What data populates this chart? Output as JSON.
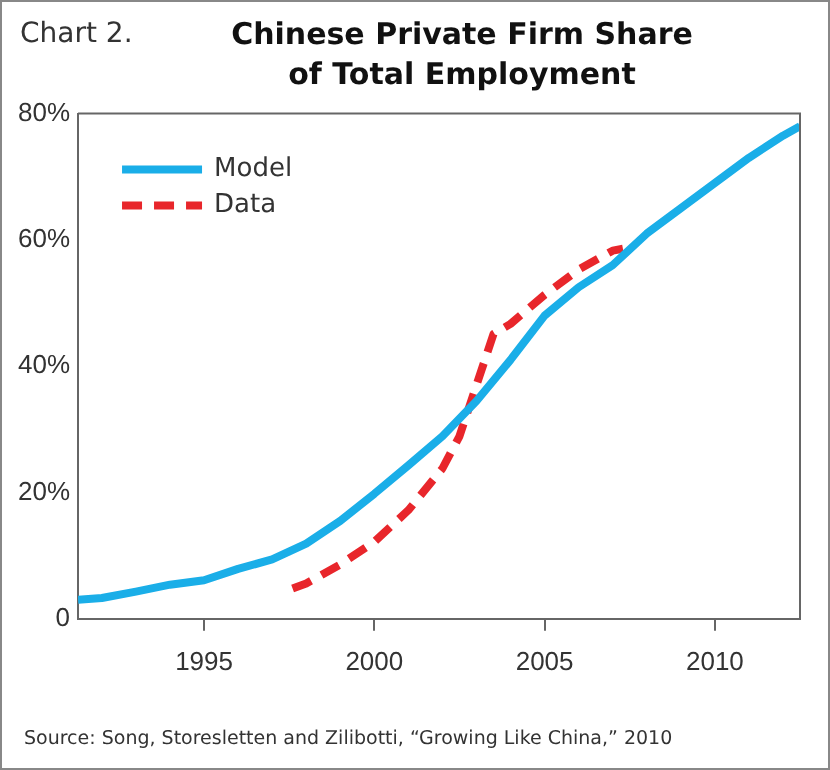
{
  "chart_data": {
    "type": "line",
    "title": "Chinese Private Firm Share\nof Total Employment",
    "annotations": [
      "Chart 2.",
      "Source: Song, Storesletten and Zilibotti, “Growing Like China,” 2010"
    ],
    "series": [
      {
        "name": "Model",
        "color": "#1aaee8",
        "line_style": "solid",
        "x": [
          1991.3,
          1992,
          1993,
          1994,
          1995,
          1996,
          1997,
          1998,
          1999,
          2000,
          2001,
          2002,
          2003,
          2004,
          2005,
          2006,
          2007,
          2008,
          2009,
          2010,
          2011,
          2012,
          2012.5
        ],
        "values": [
          3,
          3.3,
          4.3,
          5.4,
          6.1,
          7.9,
          9.4,
          11.9,
          15.5,
          19.8,
          24.3,
          28.9,
          34.5,
          41,
          48,
          52.5,
          56,
          61,
          65,
          69,
          73,
          76.5,
          78
        ]
      },
      {
        "name": "Data",
        "color": "#e8262b",
        "line_style": "dashed",
        "x": [
          1997.6,
          1998,
          1999,
          2000,
          2001,
          2002,
          2002.5,
          2003,
          2003.5,
          2004,
          2005,
          2006,
          2007,
          2007.3
        ],
        "values": [
          4.8,
          5.6,
          8.6,
          12.2,
          17.2,
          23.8,
          28.9,
          37,
          45.1,
          46.7,
          51.3,
          55.3,
          58.3,
          58.6
        ]
      }
    ],
    "xlim": [
      1991.3,
      2012.5
    ],
    "xticks": [
      1995,
      2000,
      2005,
      2010
    ],
    "ylim": [
      0,
      80
    ],
    "yticks": [
      {
        "value": 0,
        "label": "0"
      },
      {
        "value": 20,
        "label": "20%"
      },
      {
        "value": 40,
        "label": "40%"
      },
      {
        "value": 60,
        "label": "60%"
      },
      {
        "value": 80,
        "label": "80%"
      }
    ],
    "grid": false,
    "legend": "top left",
    "marker": "none"
  }
}
